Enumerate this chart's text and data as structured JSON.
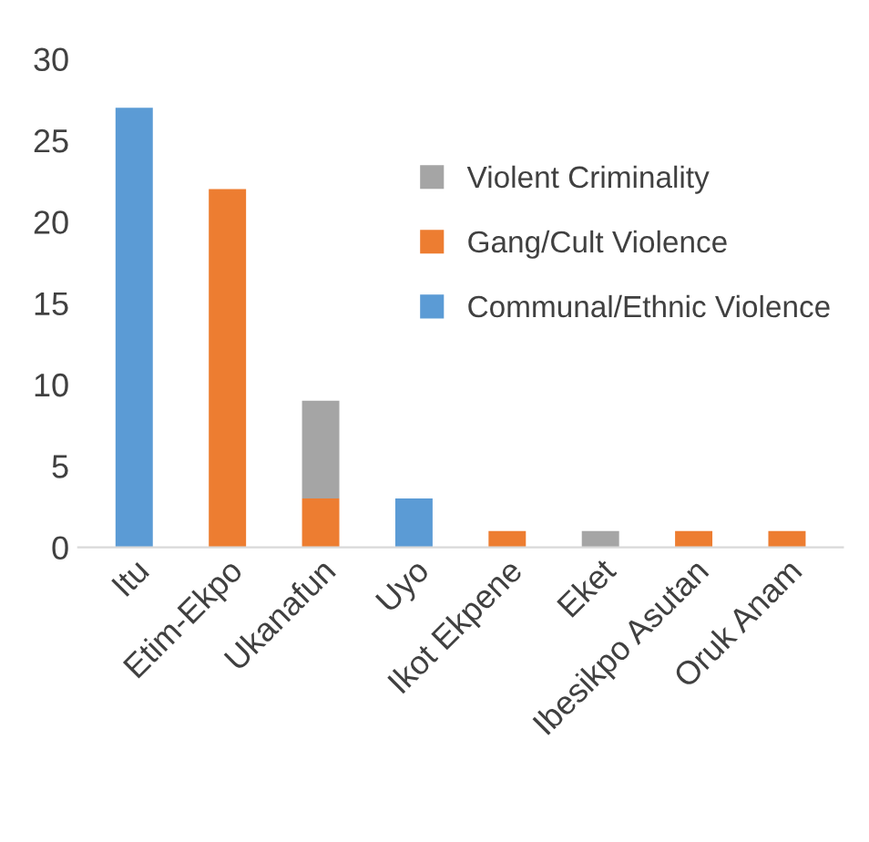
{
  "chart_data": {
    "type": "bar",
    "stacked": true,
    "categories": [
      "Itu",
      "Etim-Ekpo",
      "Ukanafun",
      "Uyo",
      "Ikot Ekpene",
      "Eket",
      "Ibesikpo Asutan",
      "Oruk Anam"
    ],
    "series": [
      {
        "name": "Communal/Ethnic Violence",
        "color": "#5b9bd5",
        "values": [
          27,
          0,
          0,
          3,
          0,
          0,
          0,
          0
        ]
      },
      {
        "name": "Gang/Cult Violence",
        "color": "#ed7d31",
        "values": [
          0,
          22,
          3,
          0,
          1,
          0,
          1,
          1
        ]
      },
      {
        "name": "Violent Criminality",
        "color": "#a5a5a5",
        "values": [
          0,
          0,
          6,
          0,
          0,
          1,
          0,
          0
        ]
      }
    ],
    "ylim": [
      0,
      30
    ],
    "yticks": [
      0,
      5,
      10,
      15,
      20,
      25,
      30
    ],
    "grid": false,
    "legend": "right"
  }
}
